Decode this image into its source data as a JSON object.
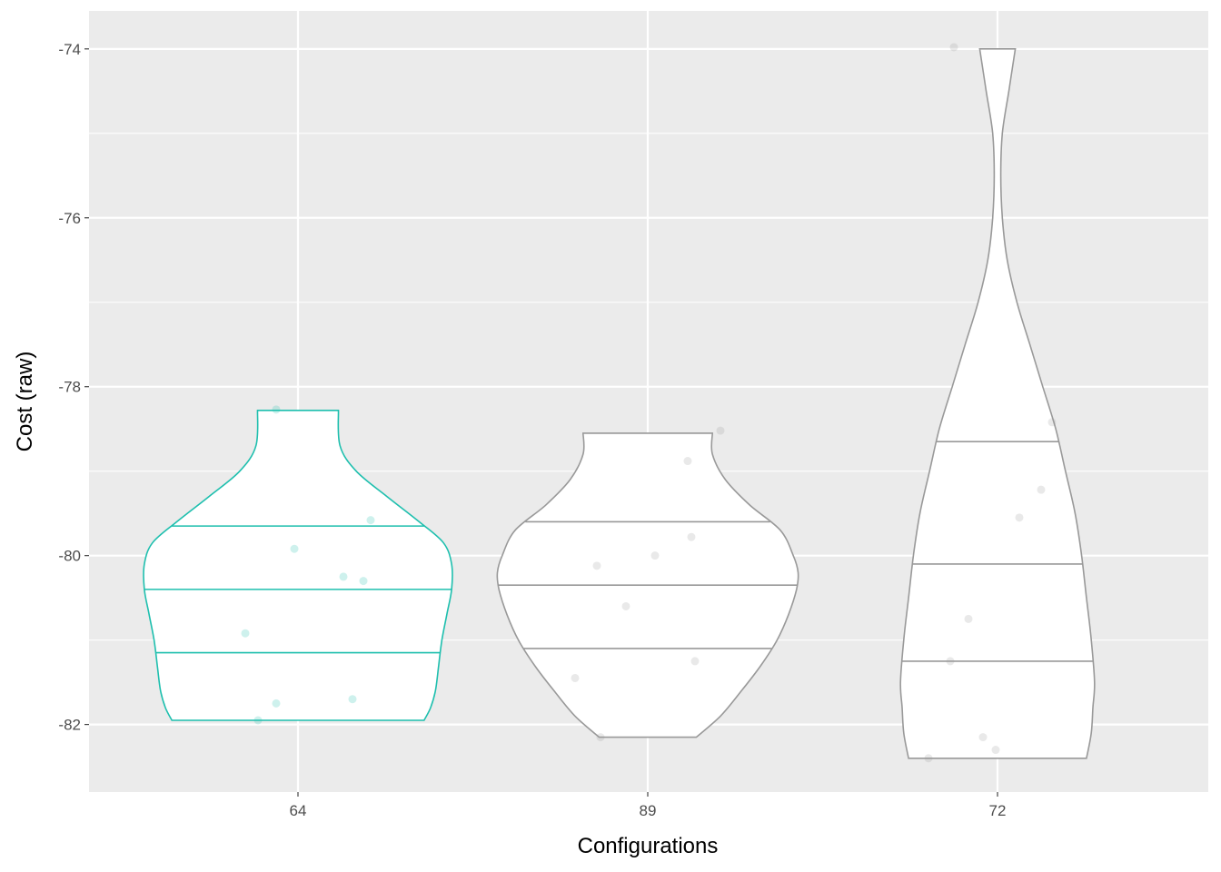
{
  "chart_data": {
    "type": "violin",
    "xlabel": "Configurations",
    "ylabel": "Cost (raw)",
    "ylim": [
      -82.8,
      -73.55
    ],
    "yticks": [
      -82,
      -80,
      -78,
      -76,
      -74
    ],
    "grid": true,
    "categories": [
      "64",
      "89",
      "72"
    ],
    "colors": {
      "panel": "#ebebeb",
      "grid": "#ffffff",
      "64": "#1ebfae",
      "89": "#999999",
      "72": "#999999"
    },
    "violins": [
      {
        "category": "64",
        "min": -81.95,
        "max": -78.28,
        "quantiles": [
          -79.65,
          -80.4,
          -81.15
        ],
        "profile": [
          [
            -81.95,
            0.78
          ],
          [
            -81.8,
            0.82
          ],
          [
            -81.6,
            0.85
          ],
          [
            -81.3,
            0.87
          ],
          [
            -81.0,
            0.89
          ],
          [
            -80.7,
            0.92
          ],
          [
            -80.4,
            0.95
          ],
          [
            -80.1,
            0.95
          ],
          [
            -79.85,
            0.9
          ],
          [
            -79.6,
            0.75
          ],
          [
            -79.3,
            0.55
          ],
          [
            -79.0,
            0.36
          ],
          [
            -78.7,
            0.26
          ],
          [
            -78.28,
            0.25
          ]
        ],
        "points": [
          [
            -1.1,
            -81.95
          ],
          [
            -0.6,
            -81.75
          ],
          [
            -1.45,
            -80.92
          ],
          [
            -0.1,
            -79.92
          ],
          [
            1.25,
            -80.25
          ],
          [
            1.8,
            -80.3
          ],
          [
            1.5,
            -81.7
          ],
          [
            2.0,
            -79.58
          ],
          [
            -0.6,
            -78.27
          ]
        ]
      },
      {
        "category": "89",
        "min": -82.15,
        "max": -78.55,
        "quantiles": [
          -79.6,
          -80.35,
          -81.1
        ],
        "profile": [
          [
            -82.15,
            0.3
          ],
          [
            -81.9,
            0.45
          ],
          [
            -81.6,
            0.58
          ],
          [
            -81.3,
            0.7
          ],
          [
            -81.0,
            0.8
          ],
          [
            -80.7,
            0.87
          ],
          [
            -80.4,
            0.92
          ],
          [
            -80.2,
            0.93
          ],
          [
            -80.0,
            0.9
          ],
          [
            -79.7,
            0.82
          ],
          [
            -79.4,
            0.63
          ],
          [
            -79.1,
            0.48
          ],
          [
            -78.8,
            0.4
          ],
          [
            -78.55,
            0.4
          ]
        ],
        "points": [
          [
            -2.0,
            -81.45
          ],
          [
            -1.3,
            -82.15
          ],
          [
            -1.4,
            -80.12
          ],
          [
            -0.6,
            -80.6
          ],
          [
            0.2,
            -80.0
          ],
          [
            1.1,
            -78.88
          ],
          [
            1.2,
            -79.78
          ],
          [
            1.3,
            -81.25
          ],
          [
            2.0,
            -78.52
          ]
        ]
      },
      {
        "category": "72",
        "min": -82.4,
        "max": -74.0,
        "quantiles": [
          -78.65,
          -80.1,
          -81.25
        ],
        "profile": [
          [
            -82.4,
            0.55
          ],
          [
            -82.1,
            0.58
          ],
          [
            -81.8,
            0.59
          ],
          [
            -81.5,
            0.6
          ],
          [
            -81.0,
            0.58
          ],
          [
            -80.5,
            0.55
          ],
          [
            -80.0,
            0.52
          ],
          [
            -79.5,
            0.48
          ],
          [
            -79.0,
            0.42
          ],
          [
            -78.5,
            0.36
          ],
          [
            -78.0,
            0.28
          ],
          [
            -77.5,
            0.2
          ],
          [
            -77.0,
            0.12
          ],
          [
            -76.5,
            0.06
          ],
          [
            -76.0,
            0.03
          ],
          [
            -75.5,
            0.02
          ],
          [
            -75.0,
            0.03
          ],
          [
            -74.5,
            0.07
          ],
          [
            -74.0,
            0.11
          ]
        ],
        "points": [
          [
            -1.9,
            -82.4
          ],
          [
            -1.3,
            -81.25
          ],
          [
            -0.8,
            -80.75
          ],
          [
            -0.4,
            -82.15
          ],
          [
            -0.05,
            -82.3
          ],
          [
            0.6,
            -79.55
          ],
          [
            1.2,
            -79.22
          ],
          [
            1.5,
            -78.42
          ],
          [
            -1.2,
            -73.98
          ]
        ]
      }
    ]
  }
}
